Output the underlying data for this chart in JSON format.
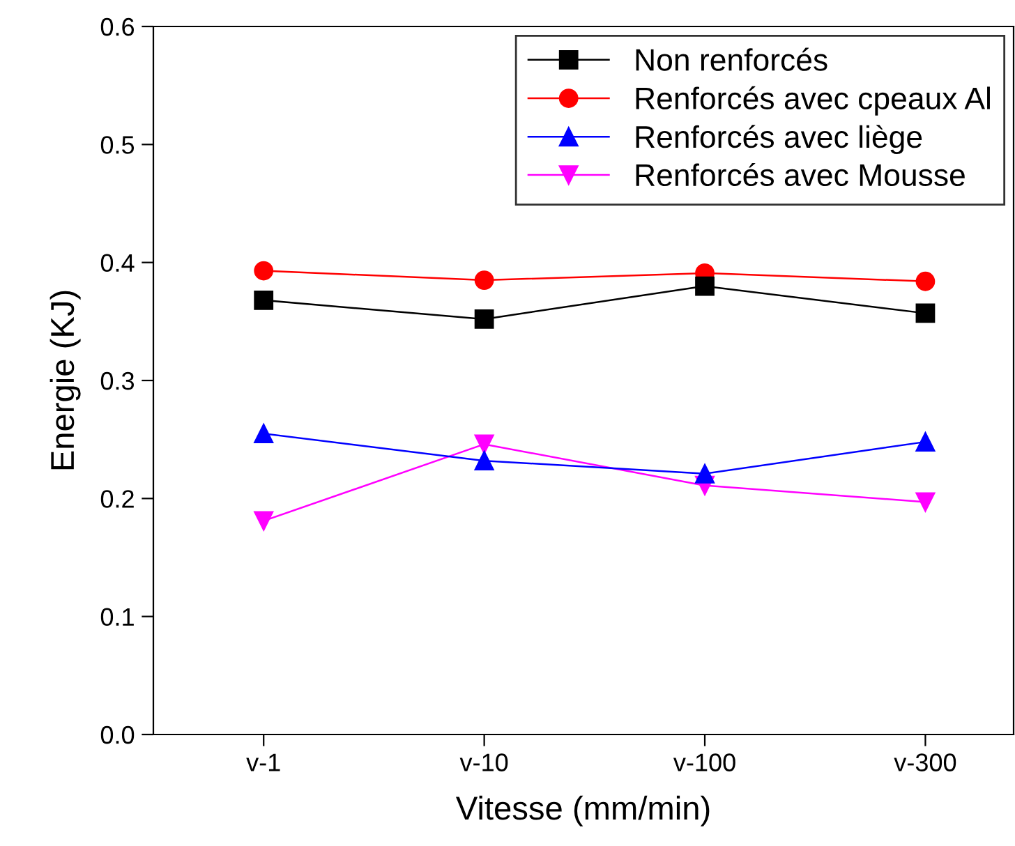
{
  "chart_data": {
    "type": "line",
    "xlabel": "Vitesse (mm/min)",
    "ylabel": "Energie (KJ)",
    "categories": [
      "v-1",
      "v-10",
      "v-100",
      "v-300"
    ],
    "series": [
      {
        "name": "Non renforcés",
        "color": "#000000",
        "marker": "square",
        "values": [
          0.368,
          0.352,
          0.38,
          0.357
        ]
      },
      {
        "name": "Renforcés avec cpeaux Al",
        "color": "#ff0000",
        "marker": "circle",
        "values": [
          0.393,
          0.385,
          0.391,
          0.384
        ]
      },
      {
        "name": "Renforcés avec liège",
        "color": "#0000ff",
        "marker": "triangle",
        "values": [
          0.255,
          0.232,
          0.221,
          0.248
        ]
      },
      {
        "name": "Renforcés avec Mousse",
        "color": "#ff00ff",
        "marker": "triangle_down",
        "values": [
          0.181,
          0.246,
          0.211,
          0.197
        ]
      }
    ],
    "ylim": [
      0.0,
      0.6
    ],
    "yticks": [
      {
        "value": 0,
        "label": "0.0"
      },
      0.1,
      0.2,
      0.3,
      0.4,
      0.5,
      0.6
    ],
    "grid": false,
    "legend": "top right",
    "line_style": "solid"
  }
}
